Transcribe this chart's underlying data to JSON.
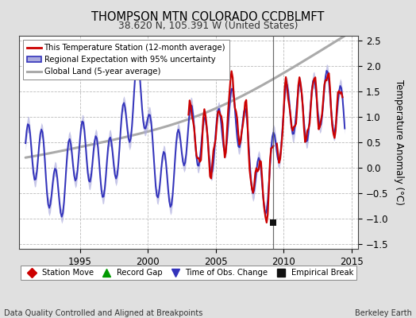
{
  "title": "THOMPSON MTN COLORADO CCDBLMFT",
  "subtitle": "38.620 N, 105.391 W (United States)",
  "ylabel": "Temperature Anomaly (°C)",
  "footer_left": "Data Quality Controlled and Aligned at Breakpoints",
  "footer_right": "Berkeley Earth",
  "xlim": [
    1990.5,
    2015.5
  ],
  "ylim": [
    -1.6,
    2.6
  ],
  "yticks": [
    -1.5,
    -1.0,
    -0.5,
    0.0,
    0.5,
    1.0,
    1.5,
    2.0,
    2.5
  ],
  "xticks": [
    1995,
    2000,
    2005,
    2010,
    2015
  ],
  "bg_color": "#e0e0e0",
  "plot_bg_color": "#ffffff",
  "grid_color": "#bbbbbb",
  "empirical_break_year": 2009.25,
  "empirical_break_value": -1.08,
  "station_color": "#cc0000",
  "regional_color": "#3333bb",
  "regional_fill": "#aaaadd",
  "global_color": "#aaaaaa",
  "legend_labels": [
    "This Temperature Station (12-month average)",
    "Regional Expectation with 95% uncertainty",
    "Global Land (5-year average)"
  ],
  "bottom_legend": [
    {
      "label": "Station Move",
      "marker": "D",
      "color": "#cc0000"
    },
    {
      "label": "Record Gap",
      "marker": "^",
      "color": "#009900"
    },
    {
      "label": "Time of Obs. Change",
      "marker": "v",
      "color": "#3333bb"
    },
    {
      "label": "Empirical Break",
      "marker": "s",
      "color": "#111111"
    }
  ]
}
